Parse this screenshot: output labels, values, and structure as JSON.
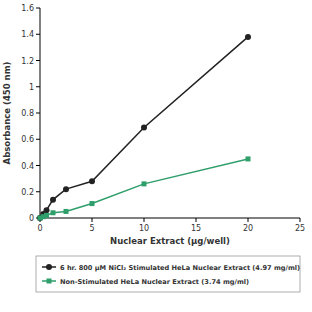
{
  "chart_data": {
    "type": "line",
    "x_label": "Nuclear Extract (µg/well)",
    "y_label": "Absorbance (450 nm)",
    "x": [
      0,
      0.3125,
      0.625,
      1.25,
      2.5,
      5,
      10,
      20
    ],
    "series": [
      {
        "name": "6 hr. 800 µM NiCl₂ Stimulated HeLa Nuclear Extract (4.97 mg/ml)",
        "color": "#222222",
        "marker": "circle",
        "line_style": "solid",
        "values": [
          0,
          0.03,
          0.06,
          0.14,
          0.22,
          0.28,
          0.69,
          1.38
        ]
      },
      {
        "name": "Non-Stimulated HeLa Nuclear Extract (3.74 mg/ml)",
        "color": "#2e9e6a",
        "marker": "square",
        "line_style": "solid",
        "values": [
          0,
          0.01,
          0.02,
          0.04,
          0.05,
          0.11,
          0.26,
          0.45
        ]
      }
    ],
    "xlim": [
      0,
      25
    ],
    "xticks": [
      0,
      5,
      10,
      15,
      20,
      25
    ],
    "ylim": [
      0,
      1.6
    ],
    "yticks": [
      0,
      0.2,
      0.4,
      0.6,
      0.8,
      1,
      1.2,
      1.4,
      1.6
    ],
    "grid": false,
    "legend": "bottom"
  }
}
